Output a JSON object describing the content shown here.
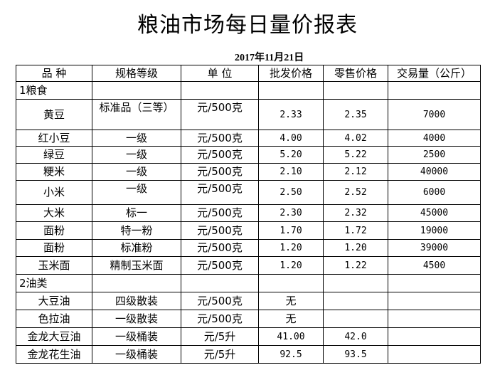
{
  "title": "粮油市场每日量价报表",
  "date": "2017年11月21日",
  "headers": [
    "品 种",
    "规格等级",
    "单 位",
    "批发价格",
    "零售价格",
    "交易量（公斤）"
  ],
  "sections": [
    {
      "label": "1粮食",
      "rows": [
        [
          "黄豆",
          "标准品（三等）",
          "元/500克",
          "2.33",
          "2.35",
          "7000"
        ],
        [
          "红小豆",
          "一级",
          "元/500克",
          "4.00",
          "4.02",
          "4000"
        ],
        [
          "绿豆",
          "一级",
          "元/500克",
          "5.20",
          "5.22",
          "2500"
        ],
        [
          "粳米",
          "一级",
          "元/500克",
          "2.10",
          "2.12",
          "40000"
        ],
        [
          "小米",
          "一级",
          "元/500克",
          "2.50",
          "2.52",
          "6000"
        ],
        [
          "大米",
          "标一",
          "元/500克",
          "2.30",
          "2.32",
          "45000"
        ],
        [
          "面粉",
          "特一粉",
          "元/500克",
          "1.70",
          "1.72",
          "19000"
        ],
        [
          "面粉",
          "标准粉",
          "元/500克",
          "1.20",
          "1.20",
          "39000"
        ],
        [
          "玉米面",
          "精制玉米面",
          "元/500克",
          "1.20",
          "1.22",
          "4500"
        ]
      ]
    },
    {
      "label": "2油类",
      "rows": [
        [
          "大豆油",
          "四级散装",
          "元/500克",
          "无",
          "",
          ""
        ],
        [
          "色拉油",
          "一级散装",
          "元/500克",
          "无",
          "",
          ""
        ],
        [
          "金龙大豆油",
          "一级桶装",
          "元/5升",
          "41.00",
          "42.0",
          ""
        ],
        [
          "金龙花生油",
          "一级桶装",
          "元/5升",
          "92.5",
          "93.5",
          ""
        ]
      ]
    }
  ]
}
